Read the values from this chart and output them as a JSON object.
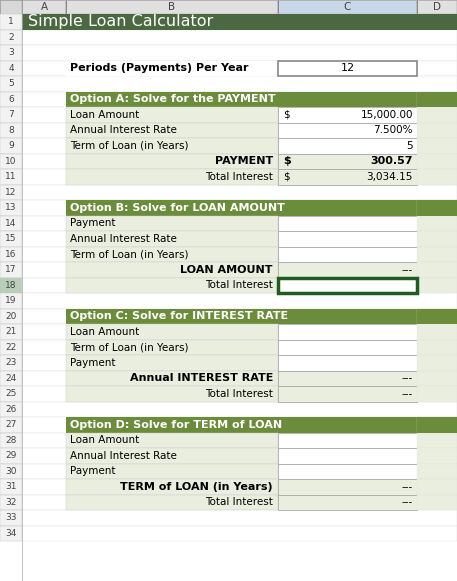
{
  "title": "Simple Loan Calculator",
  "title_bg": "#4a6941",
  "title_color": "#ffffff",
  "header_bg": "#6b8c3a",
  "header_color": "#ffffff",
  "light_bg": "#eaeedf",
  "white": "#ffffff",
  "col_header_bg": "#e0e0e0",
  "row_num_bg": "#f0f0f0",
  "border_light": "#c0c0c0",
  "border_dark": "#888888",
  "dark_green_border": "#1f5c1f",
  "col_c_selected_bg": "#c6d9b0",
  "col_headers": [
    "A",
    "B",
    "C",
    "D"
  ],
  "n_rows": 34,
  "periods_label": "Periods (Payments) Per Year",
  "periods_value": "12",
  "opt_a_header": "Option A: Solve for the PAYMENT",
  "opt_a_rows": [
    {
      "label": "Loan Amount",
      "sym": "$",
      "val": "15,000.00"
    },
    {
      "label": "Annual Interest Rate",
      "sym": "",
      "val": "7.500%"
    },
    {
      "label": "Term of Loan (in Years)",
      "sym": "",
      "val": "5"
    }
  ],
  "opt_a_result_label": "PAYMENT",
  "opt_a_result_sym": "$",
  "opt_a_result_val": "300.57",
  "opt_a_interest_label": "Total Interest",
  "opt_a_interest_sym": "$",
  "opt_a_interest_val": "3,034.15",
  "opt_b_header": "Option B: Solve for LOAN AMOUNT",
  "opt_b_rows": [
    {
      "label": "Payment"
    },
    {
      "label": "Annual Interest Rate"
    },
    {
      "label": "Term of Loan (in Years)"
    }
  ],
  "opt_b_result_label": "LOAN AMOUNT",
  "opt_b_result_val": "---",
  "opt_b_interest_label": "Total Interest",
  "opt_b_interest_val": "---",
  "opt_c_header": "Option C: Solve for INTEREST RATE",
  "opt_c_rows": [
    {
      "label": "Loan Amount"
    },
    {
      "label": "Term of Loan (in Years)"
    },
    {
      "label": "Payment"
    }
  ],
  "opt_c_result_label": "Annual INTEREST RATE",
  "opt_c_result_val": "---",
  "opt_c_interest_label": "Total Interest",
  "opt_c_interest_val": "---",
  "opt_d_header": "Option D: Solve for TERM of LOAN",
  "opt_d_rows": [
    {
      "label": "Loan Amount"
    },
    {
      "label": "Annual Interest Rate"
    },
    {
      "label": "Payment"
    }
  ],
  "opt_d_result_label": "TERM of LOAN (in Years)",
  "opt_d_result_val": "---",
  "opt_d_interest_label": "Total Interest",
  "opt_d_interest_val": "---"
}
